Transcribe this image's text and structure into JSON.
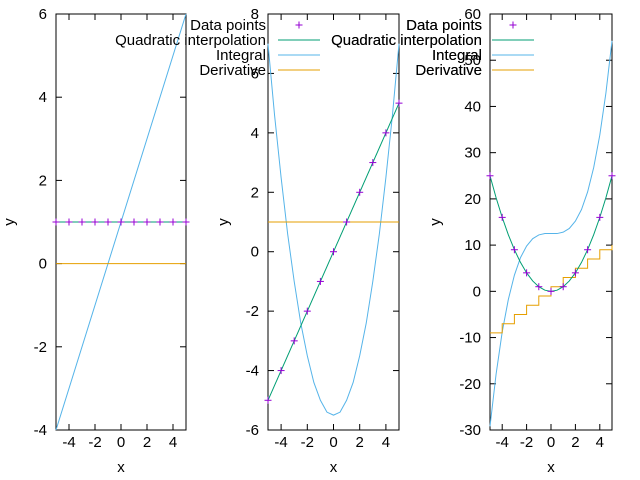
{
  "chart_data": [
    {
      "type": "line",
      "xlabel": "x",
      "ylabel": "y",
      "xlim": [
        -5,
        5
      ],
      "ylim": [
        -4,
        6
      ],
      "xticks": [
        -4,
        -2,
        0,
        2,
        4
      ],
      "yticks": [
        -4,
        -2,
        0,
        2,
        4,
        6
      ],
      "legend_position": "top-right",
      "legend_order": [
        "data",
        "quad",
        "integral",
        "deriv"
      ],
      "series": [
        {
          "id": "data",
          "name": "Data points",
          "kind": "points",
          "color": "#9400d3",
          "x": [
            -5,
            -4,
            -3,
            -2,
            -1,
            0,
            1,
            2,
            3,
            4,
            5
          ],
          "y": [
            1,
            1,
            1,
            1,
            1,
            1,
            1,
            1,
            1,
            1,
            1
          ]
        },
        {
          "id": "quad",
          "name": "Quadratic interpolation",
          "kind": "line",
          "color": "#009e73",
          "x": [
            -5,
            5
          ],
          "y": [
            1,
            1
          ]
        },
        {
          "id": "integral",
          "name": "Integral",
          "kind": "line",
          "color": "#56b4e9",
          "x": [
            -5,
            5
          ],
          "y": [
            -4,
            6
          ]
        },
        {
          "id": "deriv",
          "name": "Derivative",
          "kind": "line",
          "color": "#e69f00",
          "x": [
            -5,
            5
          ],
          "y": [
            0,
            0
          ]
        }
      ]
    },
    {
      "type": "line",
      "xlabel": "x",
      "ylabel": "y",
      "xlim": [
        -5,
        5
      ],
      "ylim": [
        -6,
        8
      ],
      "xticks": [
        -4,
        -2,
        0,
        2,
        4
      ],
      "yticks": [
        -6,
        -4,
        -2,
        0,
        2,
        4,
        6,
        8
      ],
      "legend_position": "top-right",
      "legend_order": [
        "data",
        "quad",
        "integral",
        "deriv"
      ],
      "series": [
        {
          "id": "data",
          "name": "Data points",
          "kind": "points",
          "color": "#9400d3",
          "x": [
            -5,
            -4,
            -3,
            -2,
            -1,
            0,
            1,
            2,
            3,
            4,
            5
          ],
          "y": [
            -5,
            -4,
            -3,
            -2,
            -1,
            0,
            1,
            2,
            3,
            4,
            5
          ]
        },
        {
          "id": "quad",
          "name": "Quadratic interpolation",
          "kind": "line",
          "color": "#009e73",
          "x": [
            -5,
            5
          ],
          "y": [
            -5,
            5
          ]
        },
        {
          "id": "integral",
          "name": "Integral",
          "kind": "line",
          "color": "#56b4e9",
          "x": [
            -5,
            -4.5,
            -4,
            -3.5,
            -3,
            -2.5,
            -2,
            -1.5,
            -1,
            -0.5,
            0,
            0.5,
            1,
            1.5,
            2,
            2.5,
            3,
            3.5,
            4,
            4.5,
            5
          ],
          "y": [
            7.0,
            4.6,
            2.5,
            0.6,
            -1.0,
            -2.4,
            -3.5,
            -4.4,
            -5.0,
            -5.4,
            -5.5,
            -5.4,
            -5.0,
            -4.4,
            -3.5,
            -2.4,
            -1.0,
            0.6,
            2.5,
            4.6,
            7.0
          ]
        },
        {
          "id": "deriv",
          "name": "Derivative",
          "kind": "line",
          "color": "#e69f00",
          "x": [
            -5,
            5
          ],
          "y": [
            1,
            1
          ]
        }
      ]
    },
    {
      "type": "line",
      "xlabel": "x",
      "ylabel": "y",
      "xlim": [
        -5,
        5
      ],
      "ylim": [
        -30,
        60
      ],
      "xticks": [
        -4,
        -2,
        0,
        2,
        4
      ],
      "yticks": [
        -30,
        -20,
        -10,
        0,
        10,
        20,
        30,
        40,
        50,
        60
      ],
      "legend_position": "top-right",
      "legend_order": [
        "data",
        "quad",
        "integral",
        "deriv"
      ],
      "series": [
        {
          "id": "data",
          "name": "Data points",
          "kind": "points",
          "color": "#9400d3",
          "x": [
            -5,
            -4,
            -3,
            -2,
            -1,
            0,
            1,
            2,
            3,
            4,
            5
          ],
          "y": [
            25,
            16,
            9,
            4,
            1,
            0,
            1,
            4,
            9,
            16,
            25
          ]
        },
        {
          "id": "quad",
          "name": "Quadratic interpolation",
          "kind": "line",
          "color": "#009e73",
          "x": [
            -5,
            -4.5,
            -4,
            -3.5,
            -3,
            -2.5,
            -2,
            -1.5,
            -1,
            -0.5,
            0,
            0.5,
            1,
            1.5,
            2,
            2.5,
            3,
            3.5,
            4,
            4.5,
            5
          ],
          "y": [
            25,
            20.25,
            16,
            12.25,
            9,
            6.25,
            4,
            2.25,
            1,
            0.25,
            0,
            0.25,
            1,
            2.25,
            4,
            6.25,
            9,
            12.25,
            16,
            20.25,
            25
          ]
        },
        {
          "id": "integral",
          "name": "Integral",
          "kind": "line",
          "color": "#56b4e9",
          "x": [
            -5,
            -4.5,
            -4,
            -3.5,
            -3,
            -2.5,
            -2,
            -1.5,
            -1,
            -0.5,
            0,
            0.5,
            1,
            1.5,
            2,
            2.5,
            3,
            3.5,
            4,
            4.5,
            5
          ],
          "y": [
            -29.2,
            -17.9,
            -8.8,
            -1.8,
            3.5,
            7.3,
            9.8,
            11.4,
            12.2,
            12.5,
            12.5,
            12.5,
            12.8,
            13.6,
            15.2,
            17.7,
            21.5,
            26.8,
            33.8,
            42.9,
            54.2
          ]
        },
        {
          "id": "deriv",
          "name": "Derivative",
          "kind": "line",
          "color": "#e69f00",
          "x": [
            -5,
            -4,
            -4,
            -3,
            -3,
            -2,
            -2,
            -1,
            -1,
            0,
            0,
            1,
            1,
            2,
            2,
            3,
            3,
            4,
            4,
            5,
            5
          ],
          "y": [
            -9,
            -9,
            -7,
            -7,
            -5,
            -5,
            -3,
            -3,
            -1,
            -1,
            1,
            1,
            3,
            3,
            5,
            5,
            7,
            7,
            9,
            9,
            10
          ]
        }
      ]
    }
  ]
}
